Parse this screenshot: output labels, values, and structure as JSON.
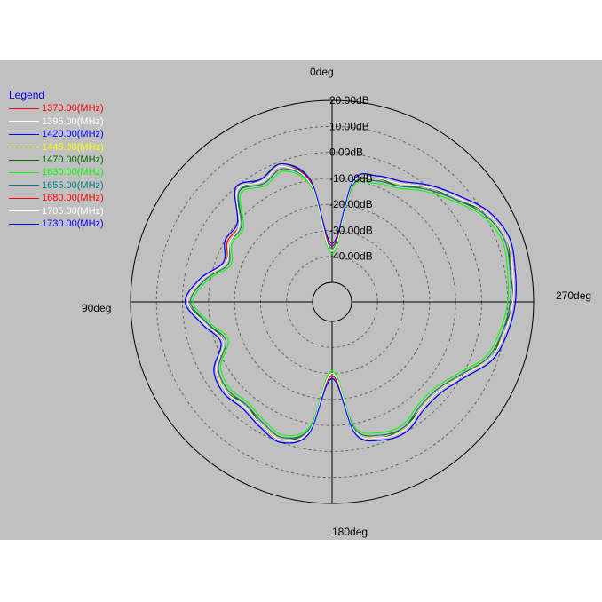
{
  "chart_data": {
    "type": "polar",
    "title": "",
    "legend_title": "Legend",
    "legend_position": "top-left",
    "angle_labels": [
      "0deg",
      "90deg",
      "180deg",
      "270deg"
    ],
    "radial_tick_labels": [
      "20.00dB",
      "10.00dB",
      "0.00dB",
      "-10.00dB",
      "-20.00dB",
      "-30.00dB",
      "-40.00dB"
    ],
    "radial_ticks": [
      20,
      10,
      0,
      -10,
      -20,
      -30,
      -40
    ],
    "rlim": [
      -50,
      20
    ],
    "grid": true,
    "angles_deg": [
      0,
      10,
      20,
      30,
      40,
      50,
      60,
      70,
      80,
      90,
      100,
      110,
      120,
      130,
      140,
      150,
      160,
      170,
      180,
      190,
      200,
      210,
      220,
      230,
      240,
      250,
      260,
      270,
      280,
      290,
      300,
      310,
      320,
      330,
      340,
      350
    ],
    "series": [
      {
        "name": "1370.00(MHz)",
        "color": "#ff0000",
        "dashed": false,
        "r": [
          -38,
          -12,
          -3,
          -5,
          -2,
          -12,
          -12,
          -15,
          -8,
          -3,
          -9,
          -14,
          -7,
          -5,
          -6,
          -4,
          -2,
          -8,
          -30,
          -8,
          -3,
          -2,
          -5,
          -5,
          -1,
          6,
          9,
          11,
          12,
          13,
          10,
          4,
          -1,
          -6,
          -8,
          -12
        ]
      },
      {
        "name": "1395.00(MHz)",
        "color": "#ffffff",
        "dashed": false,
        "r": [
          -37,
          -11,
          -2,
          -4,
          -1,
          -11,
          -11,
          -14,
          -7,
          -2,
          -8,
          -13,
          -6,
          -4,
          -5,
          -3,
          -1,
          -7,
          -29,
          -7,
          -2,
          -1,
          -4,
          -4,
          0,
          7,
          10,
          12,
          13,
          14,
          11,
          5,
          0,
          -5,
          -7,
          -11
        ]
      },
      {
        "name": "1420.00(MHz)",
        "color": "#0000ff",
        "dashed": false,
        "r": [
          -36,
          -10,
          -1,
          -3,
          0,
          -10,
          -10,
          -13,
          -6,
          -1,
          -7,
          -12,
          -5,
          -3,
          -4,
          -2,
          0,
          -6,
          -28,
          -6,
          -1,
          0,
          -3,
          -3,
          1,
          8,
          11,
          13,
          14,
          15,
          12,
          6,
          1,
          -4,
          -6,
          -10
        ]
      },
      {
        "name": "1445.00(MHz)",
        "color": "#ffff00",
        "dashed": true,
        "r": [
          -35,
          -11,
          -2,
          -4,
          -1,
          -12,
          -11,
          -15,
          -7,
          -3,
          -8,
          -14,
          -6,
          -5,
          -5,
          -4,
          -1,
          -7,
          -31,
          -7,
          -3,
          -1,
          -4,
          -5,
          0,
          6,
          10,
          12,
          13,
          13,
          10,
          5,
          0,
          -5,
          -8,
          -11
        ]
      },
      {
        "name": "1470.00(MHz)",
        "color": "#006400",
        "dashed": false,
        "r": [
          -38,
          -11,
          -1,
          -3,
          -2,
          -11,
          -12,
          -14,
          -7,
          -2,
          -9,
          -13,
          -6,
          -4,
          -6,
          -3,
          -1,
          -8,
          -29,
          -7,
          -2,
          -2,
          -4,
          -4,
          0,
          7,
          9,
          12,
          12,
          14,
          11,
          4,
          0,
          -6,
          -7,
          -11
        ]
      },
      {
        "name": "1630.00(MHz)",
        "color": "#00ff00",
        "dashed": false,
        "r": [
          -39,
          -13,
          -4,
          -6,
          -3,
          -13,
          -13,
          -16,
          -9,
          -4,
          -10,
          -15,
          -8,
          -6,
          -7,
          -5,
          -3,
          -9,
          -31,
          -9,
          -4,
          -3,
          -6,
          -6,
          -2,
          5,
          8,
          10,
          11,
          12,
          9,
          3,
          -2,
          -7,
          -9,
          -13
        ]
      },
      {
        "name": "1655.00(MHz)",
        "color": "#008080",
        "dashed": false,
        "r": [
          -37,
          -12,
          -3,
          -5,
          -2,
          -12,
          -12,
          -15,
          -8,
          -3,
          -9,
          -14,
          -7,
          -5,
          -6,
          -4,
          -2,
          -8,
          -30,
          -8,
          -3,
          -2,
          -5,
          -5,
          -1,
          6,
          9,
          11,
          12,
          13,
          10,
          4,
          -1,
          -6,
          -8,
          -12
        ]
      },
      {
        "name": "1680.00(MHz)",
        "color": "#ff0000",
        "dashed": false,
        "r": [
          -36,
          -11,
          -2,
          -4,
          -1,
          -11,
          -11,
          -14,
          -7,
          -2,
          -8,
          -13,
          -6,
          -4,
          -5,
          -3,
          -1,
          -7,
          -29,
          -7,
          -2,
          -1,
          -4,
          -4,
          0,
          7,
          10,
          12,
          13,
          14,
          11,
          5,
          0,
          -5,
          -7,
          -11
        ]
      },
      {
        "name": "1705.00(MHz)",
        "color": "#ffffff",
        "dashed": false,
        "r": [
          -38,
          -12,
          -2,
          -4,
          -1,
          -11,
          -12,
          -14,
          -7,
          -2,
          -8,
          -13,
          -6,
          -4,
          -5,
          -3,
          -1,
          -7,
          -30,
          -7,
          -2,
          -1,
          -4,
          -4,
          0,
          7,
          10,
          12,
          13,
          14,
          11,
          5,
          0,
          -5,
          -7,
          -11
        ]
      },
      {
        "name": "1730.00(MHz)",
        "color": "#0000ff",
        "dashed": false,
        "r": [
          -35,
          -10,
          -1,
          -3,
          0,
          -10,
          -10,
          -13,
          -6,
          -1,
          -7,
          -12,
          -5,
          -3,
          -4,
          -2,
          0,
          -6,
          -28,
          -6,
          -1,
          0,
          -3,
          -3,
          1,
          8,
          11,
          13,
          14,
          15,
          12,
          6,
          1,
          -4,
          -6,
          -10
        ]
      }
    ]
  }
}
